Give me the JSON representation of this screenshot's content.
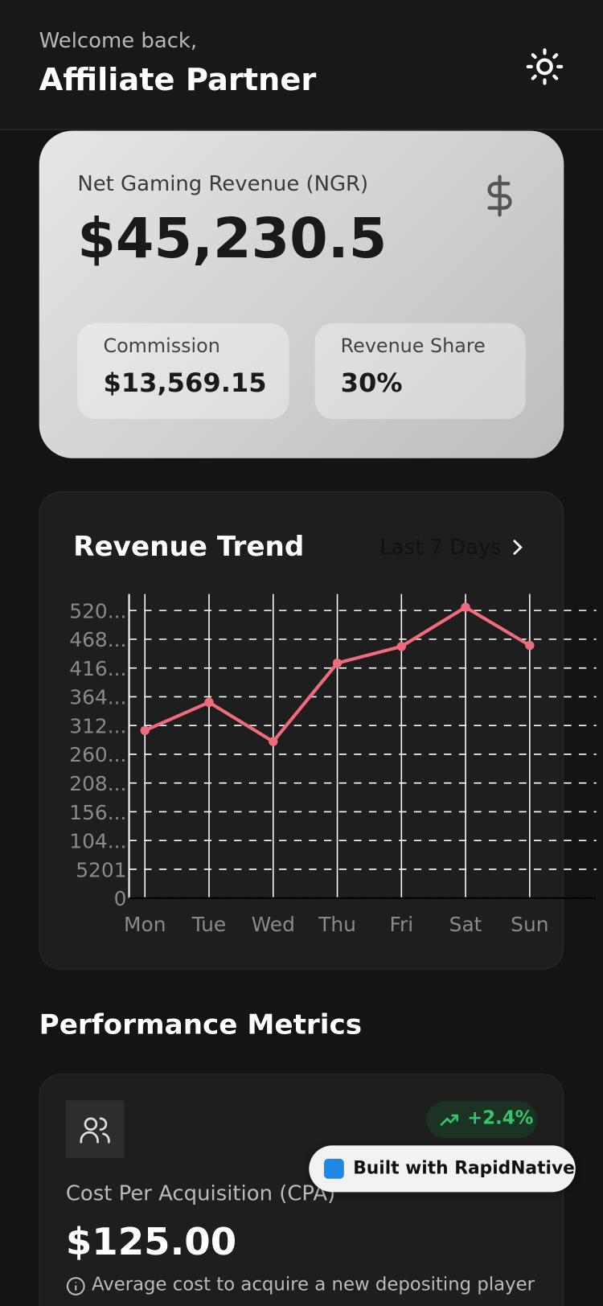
{
  "header": {
    "greeting": "Welcome back,",
    "name": "Affiliate Partner"
  },
  "ngr": {
    "label": "Net Gaming Revenue (NGR)",
    "value": "$45,230.5",
    "commission_label": "Commission",
    "commission_value": "$13,569.15",
    "share_label": "Revenue Share",
    "share_value": "30%"
  },
  "chart_data": {
    "type": "line",
    "title": "Revenue Trend",
    "period": "Last 7 Days",
    "categories": [
      "Mon",
      "Tue",
      "Wed",
      "Thu",
      "Fri",
      "Sat",
      "Sun"
    ],
    "values": [
      30300,
      35400,
      28300,
      42500,
      45500,
      52600,
      45700
    ],
    "color": "#f06b7c",
    "ylim": [
      0,
      55000
    ],
    "yticks": [
      0,
      5201,
      {
        "value": 10402,
        "label": "104..."
      },
      {
        "value": 15603,
        "label": "156..."
      },
      {
        "value": 20804,
        "label": "208..."
      },
      {
        "value": 26005,
        "label": "260..."
      },
      {
        "value": 31206,
        "label": "312..."
      },
      {
        "value": 36407,
        "label": "364..."
      },
      {
        "value": 41608,
        "label": "416..."
      },
      {
        "value": 46809,
        "label": "468..."
      },
      {
        "value": 52010,
        "label": "520..."
      }
    ],
    "grid": true
  },
  "metrics": {
    "title": "Performance Metrics",
    "cards": [
      {
        "change": "+2.4%",
        "label": "Cost Per Acquisition (CPA)",
        "value": "$125.00",
        "note": "Average cost to acquire a new depositing player"
      }
    ]
  },
  "badge": "Built with RapidNative"
}
